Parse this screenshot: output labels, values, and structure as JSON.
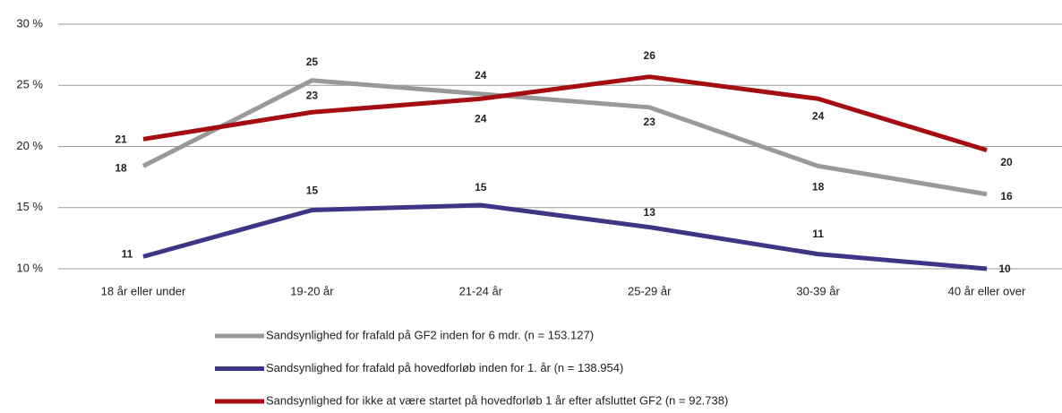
{
  "chart_data": {
    "type": "line",
    "categories": [
      "18 år eller under",
      "19-20 år",
      "21-24 år",
      "25-29 år",
      "30-39 år",
      "40 år eller over"
    ],
    "series": [
      {
        "name": "Sandsynlighed for frafald på GF2 inden for 6 mdr. (n = 153.127)",
        "color": "#999999",
        "values": [
          18.4,
          25.4,
          24.3,
          23.2,
          18.4,
          16.1
        ],
        "value_labels": [
          "18",
          "25",
          "24",
          "23",
          "18",
          "16"
        ]
      },
      {
        "name": "Sandsynlighed for frafald på hovedforløb inden for 1. år (n = 138.954)",
        "color": "#3d3585",
        "values": [
          11.0,
          14.8,
          15.2,
          13.4,
          11.2,
          10.0
        ],
        "value_labels": [
          "11",
          "15",
          "15",
          "13",
          "11",
          "10"
        ]
      },
      {
        "name": "Sandsynlighed for ikke at være startet på hovedforløb 1 år efter afsluttet GF2 (n = 92.738)",
        "color": "#a50d12",
        "values": [
          20.6,
          22.8,
          23.9,
          25.7,
          23.9,
          19.7
        ],
        "value_labels": [
          "21",
          "23",
          "24",
          "26",
          "24",
          "20"
        ]
      }
    ],
    "ylim": [
      10,
      30
    ],
    "yticks": [
      {
        "value": 10,
        "label": "10 %"
      },
      {
        "value": 15,
        "label": "15 %"
      },
      {
        "value": 20,
        "label": "20 %"
      },
      {
        "value": 25,
        "label": "25 %"
      },
      {
        "value": 30,
        "label": "30 %"
      }
    ],
    "grid": true
  }
}
